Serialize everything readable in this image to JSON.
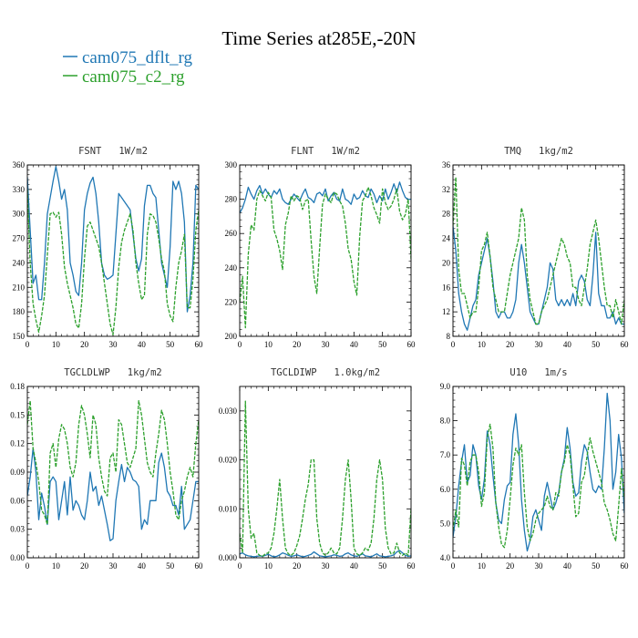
{
  "figure": {
    "title": "Time Series at285E,-20N",
    "legend": [
      {
        "label": "cam075_dflt_rg",
        "color": "#1f77b4",
        "style": "solid"
      },
      {
        "label": "cam075_c2_rg",
        "color": "#2ca02c",
        "style": "dashed"
      }
    ]
  },
  "colors": {
    "series1": "#1f77b4",
    "series2": "#2ca02c",
    "axis": "#000000"
  },
  "chart_data": [
    {
      "type": "line",
      "title": "FSNT   1W/m2",
      "xlim": [
        0,
        60
      ],
      "ylim": [
        150,
        360
      ],
      "xticks": [
        0,
        10,
        20,
        30,
        40,
        50,
        60
      ],
      "yticks": [
        150,
        180,
        210,
        240,
        270,
        300,
        330,
        360
      ],
      "ytick_labels": [
        "150",
        "180",
        "210",
        "240",
        "270",
        "300",
        "330",
        "360"
      ],
      "series": [
        {
          "name": "cam075_dflt_rg",
          "values": [
            345,
            280,
            215,
            225,
            195,
            195,
            240,
            300,
            320,
            340,
            358,
            340,
            318,
            330,
            305,
            240,
            225,
            205,
            200,
            240,
            305,
            325,
            338,
            345,
            325,
            290,
            240,
            225,
            220,
            222,
            225,
            275,
            325,
            320,
            315,
            310,
            305,
            275,
            245,
            230,
            245,
            310,
            335,
            335,
            325,
            320,
            280,
            240,
            225,
            210,
            260,
            340,
            330,
            340,
            325,
            290,
            180,
            200,
            240,
            335,
            330,
            320
          ]
        },
        {
          "name": "cam075_c2_rg",
          "values": [
            330,
            240,
            190,
            170,
            155,
            175,
            200,
            250,
            300,
            302,
            296,
            302,
            275,
            235,
            215,
            200,
            185,
            165,
            160,
            190,
            245,
            285,
            290,
            280,
            270,
            260,
            240,
            215,
            190,
            165,
            152,
            185,
            235,
            265,
            280,
            290,
            300,
            280,
            240,
            215,
            195,
            200,
            275,
            300,
            298,
            290,
            270,
            245,
            230,
            190,
            175,
            168,
            210,
            240,
            255,
            275,
            185,
            185,
            220,
            280,
            305,
            290
          ]
        }
      ]
    },
    {
      "type": "line",
      "title": "FLNT   1W/m2",
      "xlim": [
        0,
        60
      ],
      "ylim": [
        200,
        300
      ],
      "xticks": [
        0,
        10,
        20,
        30,
        40,
        50,
        60
      ],
      "yticks": [
        200,
        220,
        240,
        260,
        280,
        300
      ],
      "ytick_labels": [
        "200",
        "220",
        "240",
        "260",
        "280",
        "300"
      ],
      "series": [
        {
          "name": "cam075_dflt_rg",
          "values": [
            272,
            275,
            280,
            287,
            283,
            280,
            285,
            288,
            283,
            286,
            283,
            281,
            285,
            283,
            286,
            280,
            278,
            277,
            280,
            283,
            281,
            279,
            283,
            286,
            281,
            280,
            278,
            283,
            284,
            282,
            286,
            279,
            282,
            284,
            280,
            279,
            286,
            280,
            279,
            277,
            283,
            280,
            281,
            285,
            282,
            281,
            286,
            283,
            278,
            282,
            279,
            286,
            280,
            284,
            289,
            284,
            290,
            285,
            281,
            280,
            280
          ]
        },
        {
          "name": "cam075_c2_rg",
          "values": [
            220,
            235,
            205,
            248,
            265,
            262,
            280,
            285,
            282,
            279,
            284,
            281,
            262,
            257,
            250,
            239,
            265,
            272,
            282,
            279,
            282,
            281,
            274,
            279,
            280,
            256,
            235,
            225,
            252,
            277,
            283,
            280,
            278,
            284,
            283,
            279,
            276,
            266,
            251,
            245,
            232,
            224,
            258,
            279,
            282,
            287,
            282,
            275,
            271,
            266,
            286,
            278,
            274,
            276,
            280,
            286,
            273,
            268,
            271,
            280,
            245
          ]
        }
      ]
    },
    {
      "type": "line",
      "title": "TMQ   1kg/m2",
      "xlim": [
        0,
        60
      ],
      "ylim": [
        8,
        36
      ],
      "xticks": [
        0,
        10,
        20,
        30,
        40,
        50,
        60
      ],
      "yticks": [
        8,
        12,
        16,
        20,
        24,
        28,
        32,
        36
      ],
      "ytick_labels": [
        "8",
        "12",
        "16",
        "20",
        "24",
        "28",
        "32",
        "36"
      ],
      "series": [
        {
          "name": "cam075_dflt_rg",
          "values": [
            26,
            22,
            15,
            12,
            10,
            9,
            11,
            13,
            14,
            18,
            20,
            22,
            24,
            21,
            17,
            12,
            11,
            12,
            12,
            11,
            11,
            12,
            14,
            20,
            23,
            20,
            16,
            12,
            11,
            10,
            10,
            12,
            14,
            16,
            20,
            19,
            14,
            13,
            14,
            13,
            14,
            13,
            15,
            13,
            17,
            18,
            17,
            14,
            13,
            18,
            25,
            15,
            13,
            13,
            11,
            11,
            12,
            10,
            11,
            10,
            10
          ]
        },
        {
          "name": "cam075_c2_rg",
          "values": [
            26,
            34,
            19,
            15,
            15,
            13,
            11,
            12,
            12,
            16,
            22,
            23,
            25,
            21,
            16,
            14,
            12,
            12,
            12,
            15,
            18,
            20,
            22,
            24,
            29,
            27,
            18,
            14,
            12,
            10,
            10,
            12,
            13,
            14,
            16,
            18,
            20,
            22,
            24,
            23,
            21,
            20,
            16,
            16,
            14,
            13,
            16,
            19,
            23,
            25,
            27,
            24,
            20,
            16,
            13,
            13,
            11,
            14,
            12,
            10,
            14
          ]
        }
      ]
    },
    {
      "type": "line",
      "title": "TGCLDLWP   1kg/m2",
      "xlim": [
        0,
        60
      ],
      "ylim": [
        0,
        0.18
      ],
      "xticks": [
        0,
        10,
        20,
        30,
        40,
        50,
        60
      ],
      "yticks": [
        0,
        0.03,
        0.06,
        0.09,
        0.12,
        0.15,
        0.18
      ],
      "ytick_labels": [
        "0.00",
        "0.03",
        "0.06",
        "0.09",
        "0.12",
        "0.15",
        "0.18"
      ],
      "series": [
        {
          "name": "cam075_dflt_rg",
          "values": [
            0.065,
            0.085,
            0.115,
            0.09,
            0.04,
            0.068,
            0.054,
            0.035,
            0.08,
            0.085,
            0.08,
            0.04,
            0.06,
            0.08,
            0.045,
            0.085,
            0.05,
            0.06,
            0.055,
            0.045,
            0.04,
            0.06,
            0.09,
            0.07,
            0.075,
            0.055,
            0.065,
            0.05,
            0.035,
            0.018,
            0.02,
            0.06,
            0.08,
            0.098,
            0.08,
            0.095,
            0.09,
            0.082,
            0.08,
            0.075,
            0.03,
            0.04,
            0.035,
            0.06,
            0.06,
            0.06,
            0.1,
            0.11,
            0.095,
            0.07,
            0.065,
            0.055,
            0.055,
            0.045,
            0.075,
            0.03,
            0.035,
            0.04,
            0.06,
            0.08,
            0.08
          ]
        },
        {
          "name": "cam075_c2_rg",
          "values": [
            0.14,
            0.165,
            0.115,
            0.1,
            0.08,
            0.05,
            0.045,
            0.035,
            0.11,
            0.12,
            0.095,
            0.125,
            0.14,
            0.135,
            0.12,
            0.095,
            0.085,
            0.1,
            0.14,
            0.16,
            0.15,
            0.13,
            0.105,
            0.15,
            0.14,
            0.105,
            0.085,
            0.07,
            0.065,
            0.105,
            0.11,
            0.09,
            0.145,
            0.14,
            0.12,
            0.1,
            0.095,
            0.105,
            0.115,
            0.165,
            0.15,
            0.125,
            0.1,
            0.09,
            0.085,
            0.11,
            0.13,
            0.155,
            0.145,
            0.12,
            0.09,
            0.07,
            0.045,
            0.04,
            0.06,
            0.07,
            0.085,
            0.095,
            0.085,
            0.12,
            0.145
          ]
        }
      ]
    },
    {
      "type": "line",
      "title": "TGCLDIWP   1.0kg/m2",
      "xlim": [
        0,
        60
      ],
      "ylim": [
        0,
        0.035
      ],
      "xticks": [
        0,
        10,
        20,
        30,
        40,
        50,
        60
      ],
      "yticks": [
        0,
        0.01,
        0.02,
        0.03
      ],
      "ytick_labels": [
        "0.000",
        "0.010",
        "0.020",
        "0.030"
      ],
      "series": [
        {
          "name": "cam075_dflt_rg",
          "values": [
            0.0008,
            0.001,
            0.0006,
            0.0004,
            0.0003,
            0.0002,
            0.0003,
            0.0004,
            0.0003,
            0.0005,
            0.0007,
            0.0004,
            0.0002,
            0.0003,
            0.0006,
            0.001,
            0.0008,
            0.0005,
            0.0003,
            0.0004,
            0.0006,
            0.0004,
            0.0002,
            0.0003,
            0.0005,
            0.0007,
            0.0012,
            0.0008,
            0.0004,
            0.0003,
            0.0002,
            0.0003,
            0.0004,
            0.0006,
            0.0005,
            0.0003,
            0.0004,
            0.0008,
            0.001,
            0.0006,
            0.0004,
            0.0003,
            0.0005,
            0.0008,
            0.0004,
            0.0003,
            0.0002,
            0.0005,
            0.0008,
            0.0004,
            0.0003,
            0.0002,
            0.0003,
            0.0004,
            0.0006,
            0.0012,
            0.0015,
            0.001,
            0.0005,
            0.0003,
            0.0004
          ]
        },
        {
          "name": "cam075_c2_rg",
          "values": [
            0.005,
            0.001,
            0.032,
            0.01,
            0.004,
            0.005,
            0.001,
            0.0005,
            0.0003,
            0.0008,
            0.001,
            0.002,
            0.005,
            0.01,
            0.016,
            0.008,
            0.002,
            0.0008,
            0.0005,
            0.001,
            0.0025,
            0.0045,
            0.008,
            0.012,
            0.015,
            0.02,
            0.02,
            0.008,
            0.003,
            0.001,
            0.0005,
            0.001,
            0.002,
            0.001,
            0.0008,
            0.002,
            0.008,
            0.016,
            0.02,
            0.012,
            0.002,
            0.0008,
            0.0005,
            0.001,
            0.002,
            0.0015,
            0.003,
            0.008,
            0.016,
            0.02,
            0.016,
            0.006,
            0.002,
            0.0008,
            0.001,
            0.003,
            0.001,
            0.0005,
            0.001,
            0.0005,
            0.01
          ]
        }
      ]
    },
    {
      "type": "line",
      "title": "U10   1m/s",
      "xlim": [
        0,
        60
      ],
      "ylim": [
        4.0,
        9.0
      ],
      "xticks": [
        0,
        10,
        20,
        30,
        40,
        50,
        60
      ],
      "yticks": [
        4,
        5,
        6,
        7,
        8,
        9
      ],
      "ytick_labels": [
        "4.0",
        "5.0",
        "6.0",
        "7.0",
        "8.0",
        "9.0"
      ],
      "series": [
        {
          "name": "cam075_dflt_rg",
          "values": [
            4.6,
            5.2,
            6.1,
            6.8,
            7.3,
            6.2,
            6.4,
            7.3,
            7.0,
            6.1,
            5.7,
            6.3,
            7.7,
            7.3,
            6.4,
            5.6,
            5.1,
            5.0,
            5.7,
            6.1,
            6.2,
            7.6,
            8.2,
            7.3,
            5.7,
            4.8,
            4.2,
            4.5,
            5.2,
            5.4,
            5.1,
            4.8,
            5.8,
            6.2,
            5.8,
            5.4,
            5.6,
            5.9,
            6.5,
            6.9,
            7.8,
            7.2,
            6.2,
            5.8,
            5.9,
            6.8,
            7.3,
            7.1,
            6.5,
            6.0,
            5.9,
            6.1,
            6.0,
            7.2,
            8.8,
            8.0,
            6.0,
            6.5,
            7.6,
            6.9,
            5.3
          ]
        },
        {
          "name": "cam075_c2_rg",
          "values": [
            4.8,
            5.4,
            4.9,
            6.9,
            6.7,
            6.1,
            6.8,
            7.0,
            7.0,
            6.5,
            5.5,
            5.9,
            7.5,
            7.9,
            7.2,
            5.6,
            4.9,
            4.4,
            4.3,
            4.8,
            5.7,
            6.7,
            7.2,
            7.0,
            7.3,
            5.9,
            4.9,
            4.5,
            4.7,
            5.1,
            5.3,
            5.4,
            5.5,
            5.8,
            5.5,
            5.4,
            5.9,
            5.8,
            6.5,
            6.8,
            7.3,
            7.0,
            6.1,
            5.2,
            5.3,
            6.2,
            6.4,
            7.0,
            7.5,
            7.1,
            6.8,
            6.5,
            6.2,
            5.6,
            5.4,
            5.1,
            4.7,
            4.5,
            5.5,
            6.6,
            5.7
          ]
        }
      ]
    }
  ]
}
